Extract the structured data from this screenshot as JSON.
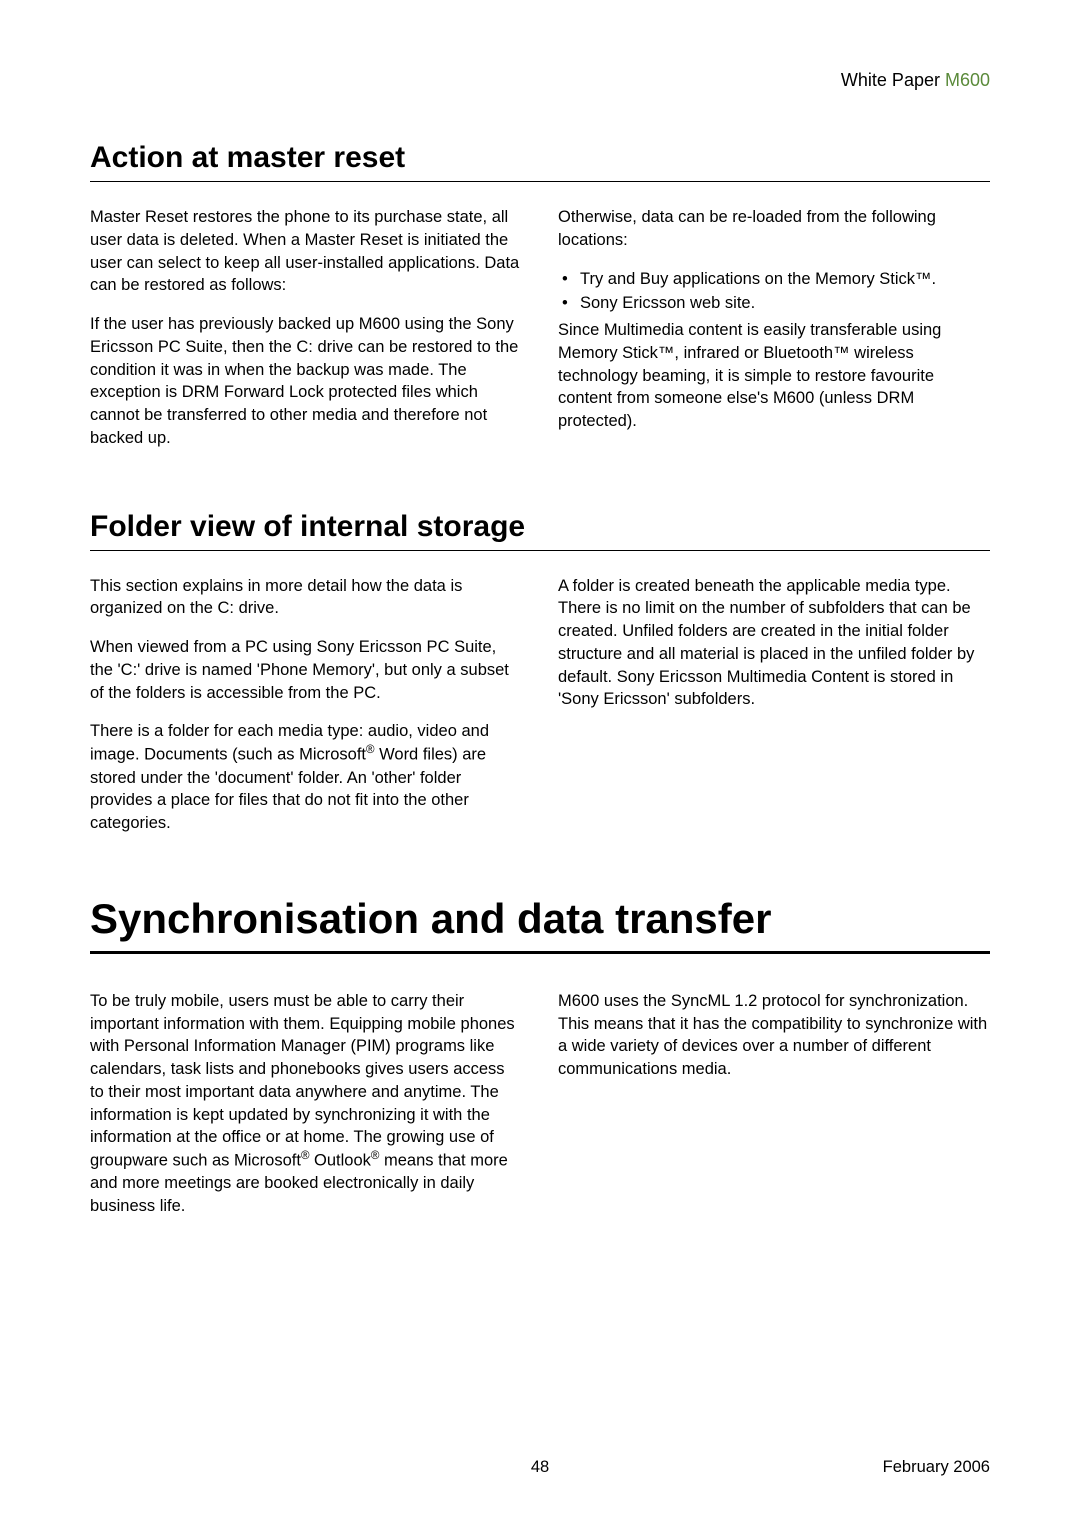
{
  "header": {
    "label_black": "White Paper ",
    "label_green": "M600"
  },
  "section1": {
    "title": "Action at master reset",
    "col1": {
      "p1": "Master Reset restores the phone to its purchase state, all user data is deleted. When a Master Reset is initiated the user can select to keep all user-installed applications. Data can be restored as follows:",
      "p2": "If the user has previously backed up M600 using the Sony Ericsson PC Suite, then the C: drive can be restored to the condition it was in when the backup was made. The exception is DRM Forward Lock protected files which cannot be transferred to other media and therefore not backed up."
    },
    "col2": {
      "p1": "Otherwise, data can be re-loaded from the following locations:",
      "b1": "Try and Buy applications on the Memory Stick™.",
      "b2": "Sony Ericsson web site.",
      "p2": "Since Multimedia content is easily transferable using Memory Stick™, infrared or Bluetooth™ wireless technology beaming, it is simple to restore favourite content from someone else's M600 (unless DRM protected)."
    }
  },
  "section2": {
    "title": "Folder view of internal storage",
    "col1": {
      "p1": "This section explains in more detail how the data is organized on the C: drive.",
      "p2": "When viewed from a PC using Sony Ericsson PC Suite, the 'C:' drive is named 'Phone Memory', but only a subset of the folders is accessible from the PC.",
      "p3a": "There is a folder for each media type: audio, video and image. Documents (such as Microsoft",
      "p3b": " Word files) are stored under the 'document' folder. An 'other' folder provides a place for files that do not fit into the other categories."
    },
    "col2": {
      "p1": "A folder is created beneath the applicable media type. There is no limit on the number of subfolders that can be created. Unfiled folders are created in the initial folder structure and all material is placed in the unfiled folder by default. Sony Ericsson Multimedia Content is stored in 'Sony Ericsson' subfolders."
    }
  },
  "section3": {
    "title": "Synchronisation and data transfer",
    "col1": {
      "p1a": "To be truly mobile, users must be able to carry their important information with them. Equipping mobile phones with Personal Information Manager (PIM) programs like calendars, task lists and phonebooks gives users access to their most important data anywhere and anytime. The information is kept updated by synchronizing it with the information at the office or at home. The growing use of groupware such as Microsoft",
      "p1b": " Outlook",
      "p1c": " means that more and more meetings are booked electronically in daily business life."
    },
    "col2": {
      "p1": "M600 uses the SyncML 1.2 protocol for synchronization. This means that it has the compatibility to synchronize with a wide variety of devices over a number of different communications media."
    }
  },
  "footer": {
    "page": "48",
    "date": "February 2006"
  },
  "glyphs": {
    "reg": "®"
  }
}
